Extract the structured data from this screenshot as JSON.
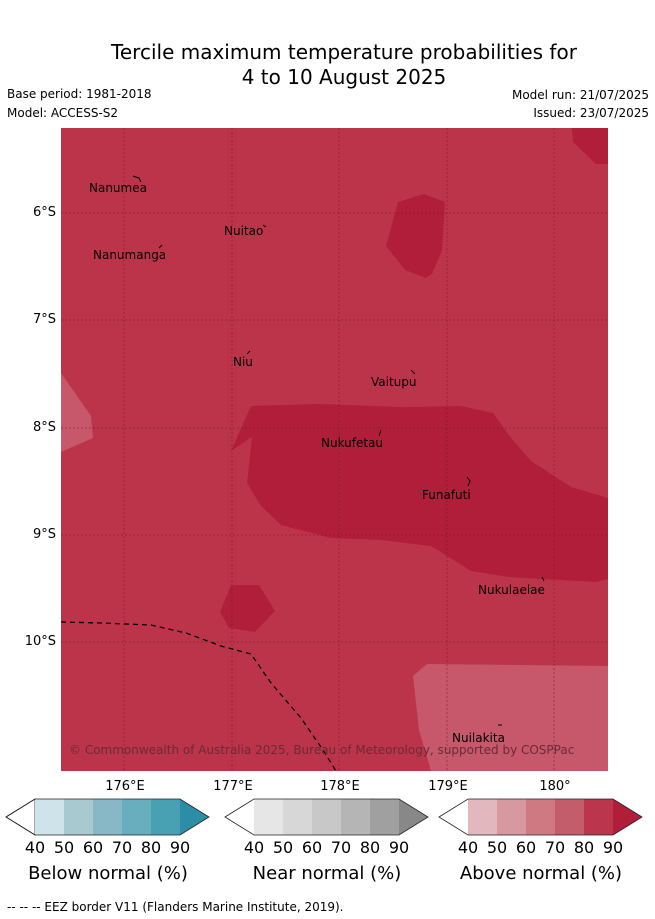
{
  "title_line1": "Tercile maximum temperature probabilities for",
  "title_line2": "4 to 10 August 2025",
  "base_period": "Base period: 1981-2018",
  "model": "Model: ACCESS-S2",
  "model_run": "Model run: 21/07/2025",
  "issued": "Issued: 23/07/2025",
  "lat_labels": [
    "6°S",
    "7°S",
    "8°S",
    "9°S",
    "10°S"
  ],
  "lon_labels": [
    "176°E",
    "177°E",
    "178°E",
    "179°E",
    "180°"
  ],
  "places": [
    "Nanumea",
    "Nuitao",
    "Nanumanga",
    "Niu",
    "Vaitupu",
    "Nukufetau",
    "Funafuti",
    "Nukulaelae",
    "Nuilakita"
  ],
  "credit": "© Commonwealth of Australia 2025, Bureau of Meteorology, supported by COSPPac",
  "legend": {
    "below": {
      "title": "Below normal (%)",
      "ticks": [
        "40",
        "50",
        "60",
        "70",
        "80",
        "90"
      ],
      "colors": [
        "#ffffff",
        "#cfe4ea",
        "#a9c9d0",
        "#88b8c6",
        "#69aebf",
        "#48a1b3",
        "#2b8ea6"
      ]
    },
    "near": {
      "title": "Near normal (%)",
      "ticks": [
        "40",
        "50",
        "60",
        "70",
        "80",
        "90"
      ],
      "colors": [
        "#ffffff",
        "#e6e6e6",
        "#d7d7d7",
        "#c8c8c8",
        "#b5b5b5",
        "#a0a0a0",
        "#888888"
      ]
    },
    "above": {
      "title": "Above normal (%)",
      "ticks": [
        "40",
        "50",
        "60",
        "70",
        "80",
        "90"
      ],
      "colors": [
        "#ffffff",
        "#e2b7bd",
        "#d8989f",
        "#cf7a83",
        "#c45d6b",
        "#bb354c",
        "#b01e3a"
      ]
    }
  },
  "map_colors": {
    "dominant": "#bc3449",
    "strong": "#b01e3a",
    "light": "#c7576a"
  },
  "footnote": "--  --  -- EEZ border V11 (Flanders Marine Institute, 2019)."
}
